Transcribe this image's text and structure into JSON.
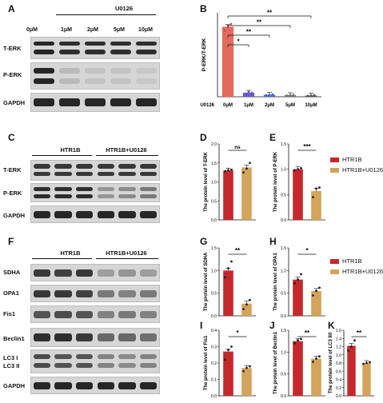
{
  "panels": {
    "A": {
      "letter": "A",
      "header": "U0126",
      "concentrations": [
        "0μM",
        "1μM",
        "2μM",
        "5μM",
        "10μM"
      ],
      "rows": [
        "T-ERK",
        "P-ERK",
        "GAPDH"
      ],
      "bands": {
        "T-ERK": [
          0.95,
          0.9,
          0.9,
          0.9,
          0.9
        ],
        "P-ERK": [
          0.95,
          0.15,
          0.1,
          0.1,
          0.08
        ],
        "GAPDH": [
          0.95,
          0.95,
          0.95,
          0.95,
          0.95
        ]
      }
    },
    "C": {
      "letter": "C",
      "groups": [
        "HTR1B",
        "HTR1B+U0126"
      ],
      "rows": [
        "T-ERK",
        "P-ERK",
        "GAPDH"
      ],
      "bands": {
        "T-ERK": [
          0.85,
          0.85,
          0.85,
          0.85,
          0.85,
          0.85
        ],
        "P-ERK": [
          0.9,
          0.9,
          0.9,
          0.35,
          0.4,
          0.5
        ],
        "GAPDH": [
          0.95,
          0.95,
          0.95,
          0.95,
          0.95,
          0.95
        ]
      }
    },
    "F": {
      "letter": "F",
      "groups": [
        "HTR1B",
        "HTR1B+U0126"
      ],
      "rows": [
        "SDHA",
        "OPA1",
        "Fis1",
        "Beclin1",
        "LC3 I\nLC3 II",
        "GAPDH"
      ],
      "row_labels": [
        "SDHA",
        "OPA1",
        "Fis1",
        "Beclin1",
        "LC3 I",
        "LC3 II",
        "GAPDH"
      ],
      "bands": {
        "SDHA": [
          0.85,
          0.8,
          0.85,
          0.3,
          0.35,
          0.3
        ],
        "OPA1": [
          0.85,
          0.85,
          0.8,
          0.5,
          0.45,
          0.5
        ],
        "Fis1": [
          0.7,
          0.75,
          0.7,
          0.45,
          0.5,
          0.45
        ],
        "Beclin1": [
          0.9,
          0.9,
          0.85,
          0.6,
          0.6,
          0.55
        ],
        "LC3": [
          0.75,
          0.7,
          0.7,
          0.45,
          0.4,
          0.45
        ],
        "GAPDH": [
          0.95,
          0.95,
          0.95,
          0.95,
          0.95,
          0.95
        ]
      }
    }
  },
  "legend": {
    "items": [
      {
        "name": "HTR1B",
        "color": "#c4282d"
      },
      {
        "name": "HTR1B+U0126",
        "color": "#d4a45a"
      }
    ]
  },
  "chart_data": [
    {
      "panel": "B",
      "type": "bar",
      "ylabel": "P-ERK/T-ERK",
      "xlabel_prefix": "U0126",
      "categories": [
        "0μM",
        "1μM",
        "2μM",
        "5μM",
        "10μM"
      ],
      "values": [
        1.75,
        0.1,
        0.05,
        0.04,
        0.03
      ],
      "points": [
        [
          1.65,
          1.78,
          1.82
        ],
        [
          0.08,
          0.12,
          0.1
        ],
        [
          0.04,
          0.05,
          0.06
        ],
        [
          0.03,
          0.04,
          0.05
        ],
        [
          0.02,
          0.03,
          0.04
        ]
      ],
      "colors": [
        "#d9534f",
        "#6a5acd",
        "#4f6bd0",
        "#777777",
        "#555555"
      ],
      "ylim": [
        0,
        2.1
      ],
      "significance": [
        "*",
        "**",
        "**",
        "**"
      ]
    },
    {
      "panel": "D",
      "type": "bar",
      "ylabel": "The protein level of T-ERK",
      "categories": [
        "HTR1B",
        "HTR1B+U0126"
      ],
      "values": [
        1.3,
        1.38
      ],
      "points": [
        [
          1.28,
          1.31,
          1.32
        ],
        [
          1.25,
          1.35,
          1.5
        ]
      ],
      "ylim": [
        0,
        2.0
      ],
      "yticks": [
        0.0,
        0.5,
        1.0,
        1.5,
        2.0
      ],
      "significance": "ns"
    },
    {
      "panel": "E",
      "type": "bar",
      "ylabel": "The protein level of P-ERK",
      "categories": [
        "HTR1B",
        "HTR1B+U0126"
      ],
      "values": [
        1.0,
        0.57
      ],
      "points": [
        [
          0.98,
          1.0,
          1.02
        ],
        [
          0.45,
          0.62,
          0.64
        ]
      ],
      "ylim": [
        0,
        1.5
      ],
      "yticks": [
        0.0,
        0.5,
        1.0,
        1.5
      ],
      "significance": "***"
    },
    {
      "panel": "G",
      "type": "bar",
      "ylabel": "The protein level of SDHA",
      "categories": [
        "HTR1B",
        "HTR1B+U0126"
      ],
      "values": [
        1.0,
        0.27
      ],
      "points": [
        [
          0.85,
          1.05,
          1.2
        ],
        [
          0.15,
          0.25,
          0.35
        ]
      ],
      "ylim": [
        0,
        1.5
      ],
      "yticks": [
        0.0,
        0.5,
        1.0,
        1.5
      ],
      "significance": "**"
    },
    {
      "panel": "H",
      "type": "bar",
      "ylabel": "The protein level of OPA1",
      "categories": [
        "HTR1B",
        "HTR1B+U0126"
      ],
      "values": [
        0.8,
        0.55
      ],
      "points": [
        [
          0.72,
          0.8,
          0.92
        ],
        [
          0.45,
          0.55,
          0.62
        ]
      ],
      "ylim": [
        0,
        1.5
      ],
      "yticks": [
        0.0,
        0.5,
        1.0,
        1.5
      ],
      "significance": "*"
    },
    {
      "panel": "I",
      "type": "bar",
      "ylabel": "The protein level of Fis1",
      "categories": [
        "HTR1B",
        "HTR1B+U0126"
      ],
      "values": [
        0.27,
        0.17
      ],
      "points": [
        [
          0.22,
          0.28,
          0.3
        ],
        [
          0.15,
          0.17,
          0.18
        ]
      ],
      "ylim": [
        0,
        0.4
      ],
      "yticks": [
        0.0,
        0.1,
        0.2,
        0.3,
        0.4
      ],
      "significance": "*"
    },
    {
      "panel": "J",
      "type": "bar",
      "ylabel": "The protein level of Beclin1",
      "categories": [
        "HTR1B",
        "HTR1B+U0126"
      ],
      "values": [
        1.25,
        0.85
      ],
      "points": [
        [
          1.2,
          1.27,
          1.3
        ],
        [
          0.78,
          0.85,
          0.9
        ]
      ],
      "ylim": [
        0,
        1.5
      ],
      "yticks": [
        0.0,
        0.5,
        1.0,
        1.5
      ],
      "significance": "**"
    },
    {
      "panel": "K",
      "type": "bar",
      "ylabel": "The protein level of LC3 II/I",
      "categories": [
        "HTR1B",
        "HTR1B+U0126"
      ],
      "values": [
        1.22,
        0.8
      ],
      "points": [
        [
          1.1,
          1.2,
          1.35
        ],
        [
          0.78,
          0.8,
          0.82
        ]
      ],
      "ylim": [
        0,
        1.6
      ],
      "yticks": [
        0.0,
        0.2,
        0.4,
        0.6,
        0.8,
        1.0,
        1.2,
        1.4,
        1.6
      ],
      "significance": "**"
    }
  ]
}
